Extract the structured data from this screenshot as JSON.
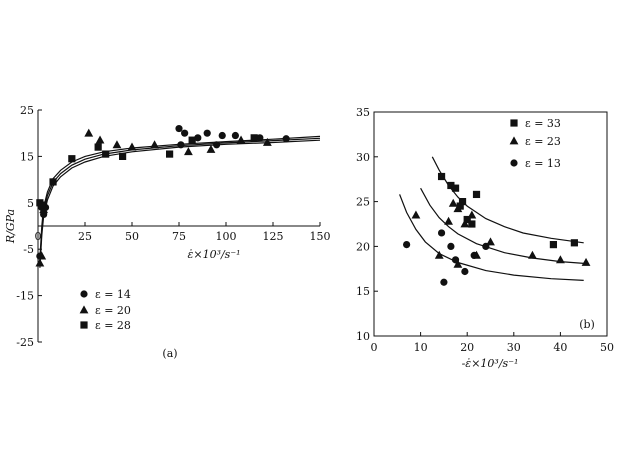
{
  "chart_data": [
    {
      "type": "scatter",
      "panel_label": "(a)",
      "xlabel": "ε̇×10³/s⁻¹",
      "ylabel": "R/GPa",
      "xlim": [
        0,
        150
      ],
      "ylim": [
        -25,
        25
      ],
      "xticks": [
        0,
        25,
        50,
        75,
        100,
        125,
        150
      ],
      "yticks": [
        -25,
        -15,
        -5,
        5,
        15,
        25
      ],
      "x_tick_labels": [
        "0",
        "25",
        "50",
        "75",
        "100",
        "125",
        "150"
      ],
      "y_tick_labels": [
        "-25",
        "-15",
        "-5",
        "5",
        "15",
        "25"
      ],
      "grid": false,
      "legend_position": "bottom-left",
      "series": [
        {
          "name": "ε = 14",
          "marker": "circle",
          "points": [
            [
              1,
              -6.5
            ],
            [
              2,
              4
            ],
            [
              3,
              2.5
            ],
            [
              4,
              4
            ],
            [
              75,
              21
            ],
            [
              78,
              20
            ],
            [
              85,
              19
            ],
            [
              90,
              20
            ],
            [
              98,
              19.5
            ],
            [
              105,
              19.5
            ],
            [
              118,
              19
            ],
            [
              132,
              18.8
            ],
            [
              76,
              17.5
            ],
            [
              95,
              17.5
            ]
          ]
        },
        {
          "name": "ε = 20",
          "marker": "triangle",
          "points": [
            [
              1,
              -8
            ],
            [
              2,
              -6.5
            ],
            [
              3,
              3.5
            ],
            [
              27,
              20
            ],
            [
              33,
              18.5
            ],
            [
              42,
              17.5
            ],
            [
              50,
              17
            ],
            [
              62,
              17.5
            ],
            [
              80,
              16
            ],
            [
              92,
              16.5
            ],
            [
              108,
              18.5
            ],
            [
              122,
              18
            ]
          ]
        },
        {
          "name": "ε = 28",
          "marker": "square",
          "points": [
            [
              1,
              5
            ],
            [
              2,
              4.5
            ],
            [
              8,
              9.5
            ],
            [
              18,
              14.5
            ],
            [
              32,
              17
            ],
            [
              36,
              15.5
            ],
            [
              45,
              15
            ],
            [
              70,
              15.5
            ],
            [
              82,
              18.5
            ],
            [
              115,
              19
            ]
          ]
        }
      ],
      "fit_curves": [
        {
          "points": [
            [
              1,
              -9
            ],
            [
              2,
              -2
            ],
            [
              3,
              2
            ],
            [
              5,
              5.6
            ],
            [
              8,
              8.6
            ],
            [
              12,
              10.6
            ],
            [
              18,
              12.5
            ],
            [
              25,
              13.8
            ],
            [
              35,
              15
            ],
            [
              50,
              16
            ],
            [
              75,
              17
            ],
            [
              100,
              17.6
            ],
            [
              125,
              18
            ],
            [
              150,
              18.5
            ]
          ]
        },
        {
          "points": [
            [
              1,
              -8
            ],
            [
              2,
              -1
            ],
            [
              3,
              3
            ],
            [
              5,
              6.5
            ],
            [
              8,
              9.4
            ],
            [
              12,
              11.3
            ],
            [
              18,
              13.1
            ],
            [
              25,
              14.4
            ],
            [
              35,
              15.5
            ],
            [
              50,
              16.4
            ],
            [
              75,
              17.3
            ],
            [
              100,
              17.9
            ],
            [
              125,
              18.4
            ],
            [
              150,
              18.9
            ]
          ]
        },
        {
          "points": [
            [
              1,
              -7
            ],
            [
              2,
              0
            ],
            [
              3,
              4
            ],
            [
              5,
              7.3
            ],
            [
              8,
              10.2
            ],
            [
              12,
              12
            ],
            [
              18,
              13.8
            ],
            [
              25,
              15
            ],
            [
              35,
              16
            ],
            [
              50,
              16.8
            ],
            [
              75,
              17.6
            ],
            [
              100,
              18.2
            ],
            [
              125,
              18.7
            ],
            [
              150,
              19.3
            ]
          ]
        }
      ]
    },
    {
      "type": "scatter",
      "panel_label": "(b)",
      "xlabel": "-ε̇×10³/s⁻¹",
      "ylabel": "",
      "xlim": [
        0,
        50
      ],
      "ylim": [
        10,
        35
      ],
      "xticks": [
        0,
        10,
        20,
        30,
        40,
        50
      ],
      "yticks": [
        10,
        15,
        20,
        25,
        30,
        35
      ],
      "x_tick_labels": [
        "0",
        "10",
        "20",
        "30",
        "40",
        "50"
      ],
      "y_tick_labels": [
        "10",
        "15",
        "20",
        "25",
        "30",
        "35"
      ],
      "grid": false,
      "legend_position": "top-left",
      "series": [
        {
          "name": "ε = 33",
          "marker": "square",
          "points": [
            [
              14.5,
              27.8
            ],
            [
              16.5,
              26.8
            ],
            [
              17.5,
              26.5
            ],
            [
              19,
              25
            ],
            [
              20,
              23
            ],
            [
              22,
              25.8
            ],
            [
              21,
              22.5
            ],
            [
              18.5,
              24.5
            ],
            [
              38.5,
              20.2
            ],
            [
              43,
              20.4
            ]
          ]
        },
        {
          "name": "ε = 23",
          "marker": "triangle",
          "points": [
            [
              9,
              23.5
            ],
            [
              14,
              19
            ],
            [
              16,
              22.8
            ],
            [
              17,
              24.8
            ],
            [
              18,
              24.2
            ],
            [
              19.5,
              22.5
            ],
            [
              21,
              23.5
            ],
            [
              22,
              19
            ],
            [
              25,
              20.5
            ],
            [
              34,
              19
            ],
            [
              40,
              18.5
            ],
            [
              45.5,
              18.2
            ],
            [
              18,
              18
            ]
          ]
        },
        {
          "name": "ε = 13",
          "marker": "circle",
          "points": [
            [
              7,
              20.2
            ],
            [
              14.5,
              21.5
            ],
            [
              15,
              16
            ],
            [
              16.5,
              20
            ],
            [
              17.5,
              18.5
            ],
            [
              19.5,
              17.2
            ],
            [
              21.5,
              19
            ],
            [
              24,
              20
            ]
          ]
        }
      ],
      "fit_curves": [
        {
          "points": [
            [
              12.5,
              30
            ],
            [
              14,
              28.5
            ],
            [
              16,
              26.8
            ],
            [
              18,
              25.5
            ],
            [
              20,
              24.5
            ],
            [
              24,
              23.1
            ],
            [
              28,
              22.2
            ],
            [
              32,
              21.5
            ],
            [
              38,
              20.9
            ],
            [
              45,
              20.4
            ]
          ]
        },
        {
          "points": [
            [
              10,
              26.5
            ],
            [
              12,
              24.6
            ],
            [
              14,
              23.2
            ],
            [
              16,
              22.2
            ],
            [
              18,
              21.4
            ],
            [
              22,
              20.3
            ],
            [
              28,
              19.3
            ],
            [
              34,
              18.7
            ],
            [
              40,
              18.3
            ],
            [
              45,
              18.1
            ]
          ]
        },
        {
          "points": [
            [
              5.5,
              25.8
            ],
            [
              7,
              23.8
            ],
            [
              9,
              21.9
            ],
            [
              11,
              20.5
            ],
            [
              14,
              19.2
            ],
            [
              18,
              18.2
            ],
            [
              24,
              17.3
            ],
            [
              30,
              16.8
            ],
            [
              38,
              16.4
            ],
            [
              45,
              16.2
            ]
          ]
        }
      ]
    }
  ]
}
